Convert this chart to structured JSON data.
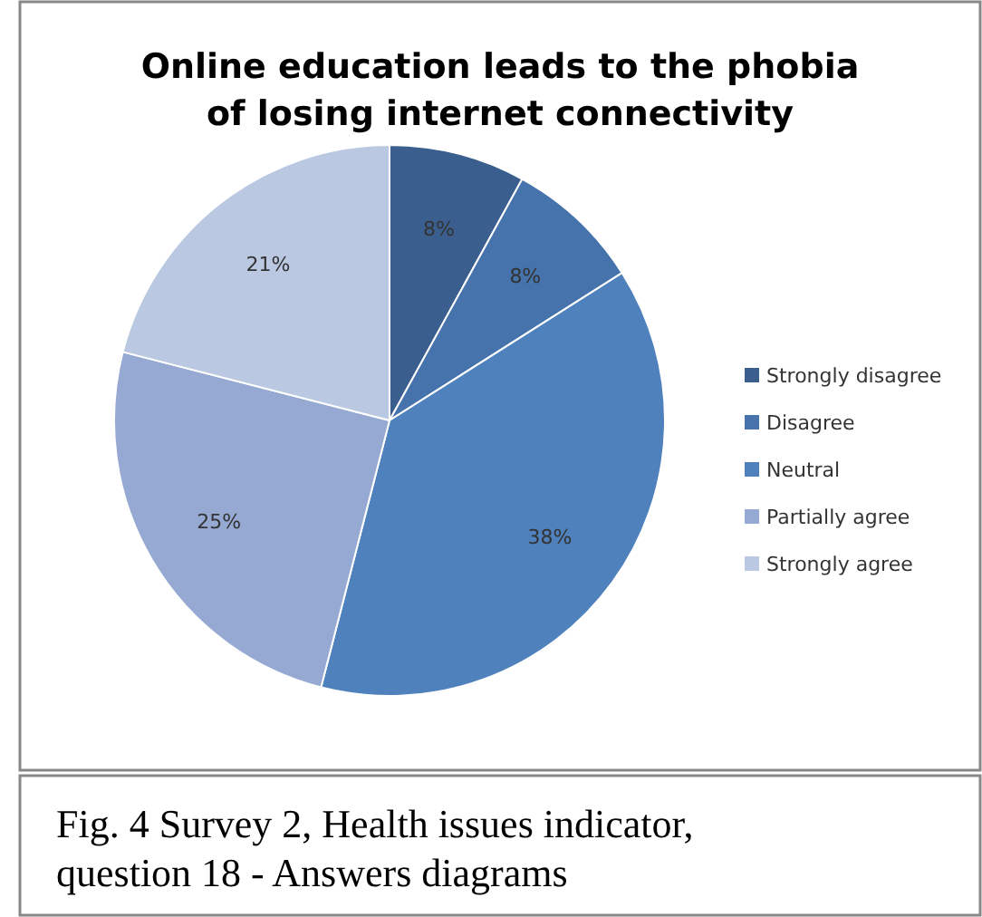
{
  "chart_data": {
    "type": "pie",
    "title": "Online education leads to the phobia of losing internet connectivity",
    "categories": [
      "Strongly disagree",
      "Disagree",
      "Neutral",
      "Partially agree",
      "Strongly agree"
    ],
    "values": [
      8,
      8,
      38,
      25,
      21
    ],
    "colors": [
      "#3a5f8f",
      "#4673ab",
      "#4f81bd",
      "#95a9d2",
      "#bac8e2"
    ],
    "value_labels": [
      "8%",
      "8%",
      "38%",
      "25%",
      "21%"
    ],
    "legend": "right",
    "annotations": [
      "Fig. 4 Survey 2, Health issues indicator, question 18 - Answers diagrams"
    ]
  }
}
